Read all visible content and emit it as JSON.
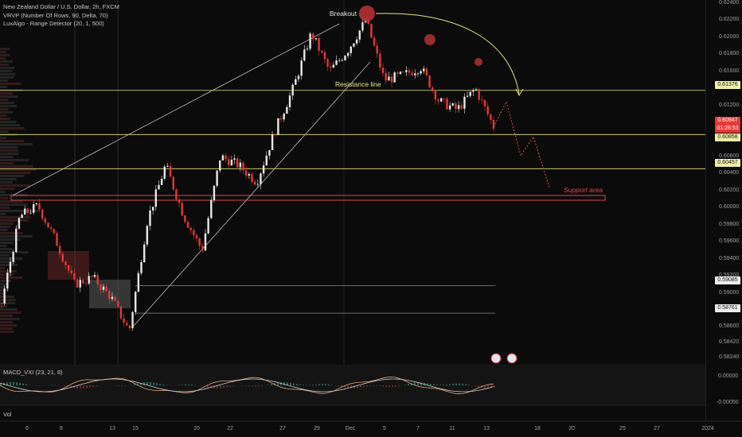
{
  "legend": {
    "symbol_line": "New Zealand Dollar / U.S. Dollar, 2h, FXCM",
    "indicator_vrvp": "VRVP (Number Of Rows, 90, Delta, 70)",
    "indicator_range": "LuxAlgo - Range Detector (20, 1, 500)"
  },
  "macd_label": "MACD_VXI (23, 21, 8)",
  "vol_label": "Vol",
  "macd_axis": {
    "top": "0.00000",
    "bottom": "-0.00050"
  },
  "price_axis_ticks": [
    "0.62400",
    "0.62200",
    "0.62000",
    "0.61800",
    "0.61600",
    "0.61400",
    "0.61200",
    "0.61000",
    "0.60800",
    "0.60600",
    "0.60400",
    "0.60200",
    "0.60000",
    "0.59800",
    "0.59600",
    "0.59400",
    "0.59200",
    "0.59000",
    "0.58800",
    "0.58600",
    "0.58420",
    "0.58240"
  ],
  "price_labels": {
    "resistance": "0.61376",
    "current_price": "0.60947",
    "countdown": "01:26:53",
    "level_2": "0.60858",
    "level_3": "0.60457",
    "level_4": "0.59085",
    "level_5": "0.58761"
  },
  "colors": {
    "up": "#e8e8e8",
    "down": "#e53935",
    "level": "#e6e68a",
    "support": "#e04848",
    "accent_red": "#ff2d2d"
  },
  "annotations": {
    "breakout": "Breakout",
    "resistance_line": "Resistance line",
    "support_area": "Support area"
  },
  "x_axis_labels": [
    "6",
    "8",
    "13",
    "15",
    "20",
    "22",
    "27",
    "29",
    "Dec",
    "5",
    "7",
    "11",
    "13",
    "18",
    "20",
    "25",
    "27",
    "2024"
  ],
  "chart_data": {
    "type": "candlestick",
    "title": "New Zealand Dollar / U.S. Dollar, 2h, FXCM",
    "ylim": [
      0.5824,
      0.624
    ],
    "horizontal_levels": [
      0.61376,
      0.60858,
      0.60457,
      0.59085,
      0.58761
    ],
    "support_area": [
      0.6,
      0.6006
    ],
    "close_path": [
      {
        "x": "Nov 6",
        "y": 0.5888
      },
      {
        "x": "Nov 6",
        "y": 0.599
      },
      {
        "x": "Nov 7",
        "y": 0.6002
      },
      {
        "x": "Nov 8",
        "y": 0.596
      },
      {
        "x": "Nov 9",
        "y": 0.591
      },
      {
        "x": "Nov 10",
        "y": 0.5918
      },
      {
        "x": "Nov 13",
        "y": 0.5895
      },
      {
        "x": "Nov 14",
        "y": 0.5855
      },
      {
        "x": "Nov 15",
        "y": 0.5985
      },
      {
        "x": "Nov 16",
        "y": 0.605
      },
      {
        "x": "Nov 17",
        "y": 0.599
      },
      {
        "x": "Nov 20",
        "y": 0.595
      },
      {
        "x": "Nov 21",
        "y": 0.606
      },
      {
        "x": "Nov 22",
        "y": 0.605
      },
      {
        "x": "Nov 23",
        "y": 0.603
      },
      {
        "x": "Nov 27",
        "y": 0.609
      },
      {
        "x": "Nov 28",
        "y": 0.614
      },
      {
        "x": "Nov 29",
        "y": 0.6205
      },
      {
        "x": "Nov 30",
        "y": 0.616
      },
      {
        "x": "Dec 1",
        "y": 0.6185
      },
      {
        "x": "Dec 4",
        "y": 0.622
      },
      {
        "x": "Dec 5",
        "y": 0.615
      },
      {
        "x": "Dec 6",
        "y": 0.6155
      },
      {
        "x": "Dec 7",
        "y": 0.6165
      },
      {
        "x": "Dec 8",
        "y": 0.6125
      },
      {
        "x": "Dec 11",
        "y": 0.6115
      },
      {
        "x": "Dec 12",
        "y": 0.614
      },
      {
        "x": "Dec 13",
        "y": 0.6095
      }
    ]
  }
}
